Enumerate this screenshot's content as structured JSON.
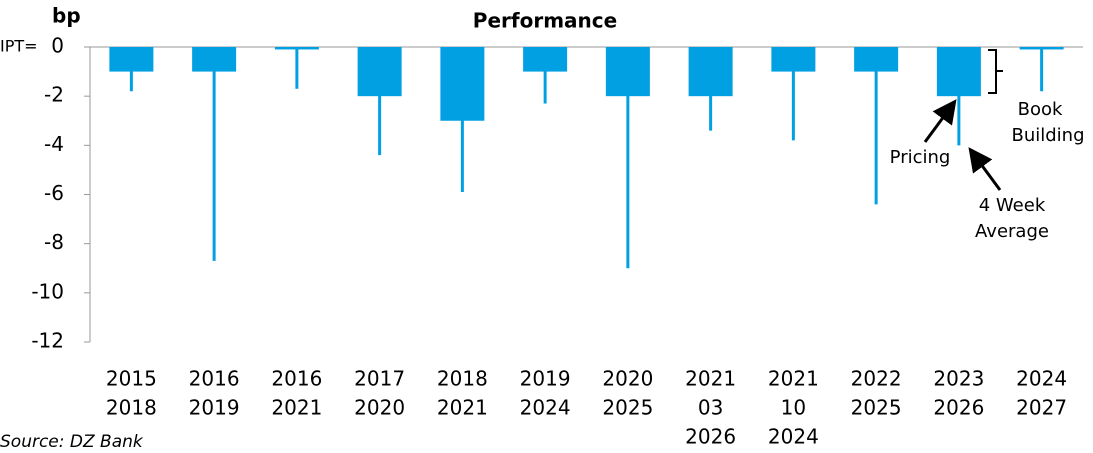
{
  "chart_data": {
    "type": "bar",
    "title": "Performance",
    "y_label": "bp",
    "source": "Source: DZ Bank",
    "ipt_label": "IPT=",
    "categories": [
      [
        "2015",
        "2018"
      ],
      [
        "2016",
        "2019"
      ],
      [
        "2016",
        "2021"
      ],
      [
        "2017",
        "2020"
      ],
      [
        "2018",
        "2021"
      ],
      [
        "2019",
        "2024"
      ],
      [
        "2020",
        "2025"
      ],
      [
        "2021",
        "03",
        "2026"
      ],
      [
        "2021",
        "10",
        "2024"
      ],
      [
        "2022",
        "2025"
      ],
      [
        "2023",
        "2026"
      ],
      [
        "2024",
        "2027"
      ]
    ],
    "series": [
      {
        "kind": "bar",
        "color": "#00a0e3",
        "values": [
          -1,
          -1,
          -0.1,
          -2,
          -3,
          -1,
          -2,
          -2,
          -1,
          -1,
          -2,
          -0.1
        ]
      },
      {
        "kind": "whisker",
        "color": "#00a0e3",
        "values": [
          -1.8,
          -8.7,
          -1.7,
          -4.4,
          -5.9,
          -2.3,
          -9.0,
          -3.4,
          -3.8,
          -6.4,
          -4.0,
          -1.8
        ]
      }
    ],
    "annotations": {
      "book_building": [
        "Book",
        "Building"
      ],
      "pricing": "Pricing",
      "four_week": [
        "4 Week",
        "Average"
      ]
    },
    "ylim": [
      -12,
      0
    ],
    "yticks": [
      -12,
      -10,
      -8,
      -6,
      -4,
      -2,
      0
    ]
  }
}
